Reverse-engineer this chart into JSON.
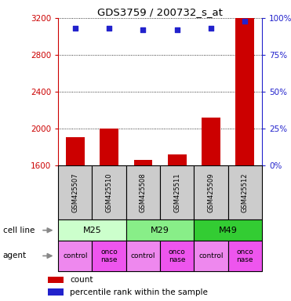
{
  "title": "GDS3759 / 200732_s_at",
  "samples": [
    "GSM425507",
    "GSM425510",
    "GSM425508",
    "GSM425511",
    "GSM425509",
    "GSM425512"
  ],
  "counts": [
    1910,
    2005,
    1665,
    1720,
    2120,
    3200
  ],
  "percentile_ranks": [
    93,
    93,
    92,
    92,
    93,
    98
  ],
  "ylim_left": [
    1600,
    3200
  ],
  "ylim_right": [
    0,
    100
  ],
  "yticks_left": [
    1600,
    2000,
    2400,
    2800,
    3200
  ],
  "yticks_right": [
    0,
    25,
    50,
    75,
    100
  ],
  "bar_color": "#cc0000",
  "dot_color": "#2222cc",
  "cell_lines": [
    {
      "label": "M25",
      "span": [
        0,
        2
      ],
      "color": "#ccffcc"
    },
    {
      "label": "M29",
      "span": [
        2,
        4
      ],
      "color": "#88ee88"
    },
    {
      "label": "M49",
      "span": [
        4,
        6
      ],
      "color": "#33cc33"
    }
  ],
  "agents": [
    {
      "label": "control",
      "span": [
        0,
        1
      ]
    },
    {
      "label": "onconase",
      "span": [
        1,
        2
      ]
    },
    {
      "label": "control",
      "span": [
        2,
        3
      ]
    },
    {
      "label": "onconase",
      "span": [
        3,
        4
      ]
    },
    {
      "label": "control",
      "span": [
        4,
        5
      ]
    },
    {
      "label": "onconase",
      "span": [
        5,
        6
      ]
    }
  ],
  "agent_color_control": "#ee88ee",
  "agent_color_onconase": "#ee55ee",
  "cell_line_label": "cell line",
  "agent_label": "agent",
  "legend_count_label": "count",
  "legend_percentile_label": "percentile rank within the sample",
  "left_axis_color": "#cc0000",
  "right_axis_color": "#2222cc",
  "sample_box_color": "#cccccc",
  "figsize": [
    3.71,
    3.84
  ],
  "dpi": 100
}
